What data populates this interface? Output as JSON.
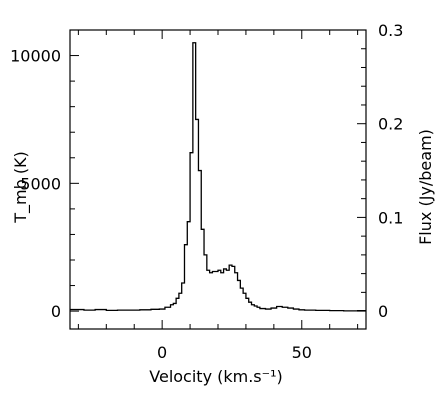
{
  "chart_data": {
    "type": "line",
    "style": "step",
    "xlabel": "Velocity (km.s⁻¹)",
    "ylabel_left": "T_mb (K)",
    "ylabel_right": "Flux (Jy/beam)",
    "xlim": [
      -33,
      73
    ],
    "ylim_left": [
      -700,
      11000
    ],
    "ylim_right": [
      -0.0191,
      0.3
    ],
    "x_ticks": [
      0,
      50
    ],
    "x_tick_labels": [
      "0",
      "50"
    ],
    "y_left_ticks": [
      0,
      5000,
      10000
    ],
    "y_left_tick_labels": [
      "0",
      "5000",
      "10000"
    ],
    "y_right_ticks": [
      0,
      0.1,
      0.2,
      0.3
    ],
    "y_right_tick_labels": [
      "0",
      "0.1",
      "0.2",
      "0.3"
    ],
    "grid": false,
    "colors": {
      "line": "#000000",
      "axes": "#000000",
      "background": "#ffffff"
    },
    "series": [
      {
        "x": [
          -33,
          -28,
          -24,
          -20,
          -16,
          -12,
          -8,
          -4,
          -1,
          1,
          3,
          4,
          5,
          6,
          7,
          8,
          9,
          10,
          11,
          12,
          13,
          14,
          15,
          16,
          17,
          18,
          19,
          20,
          21,
          22,
          23,
          24,
          25,
          26,
          27,
          28,
          29,
          30,
          31,
          32,
          33,
          34,
          35,
          37,
          39,
          41,
          43,
          45,
          47,
          49,
          51,
          55,
          60,
          65,
          70,
          73
        ],
        "values": [
          60,
          40,
          60,
          30,
          40,
          40,
          50,
          70,
          80,
          150,
          250,
          300,
          500,
          700,
          1100,
          2600,
          3500,
          6200,
          10500,
          7500,
          5500,
          3200,
          2200,
          1600,
          1500,
          1550,
          1550,
          1600,
          1500,
          1650,
          1600,
          1800,
          1750,
          1500,
          1200,
          900,
          700,
          500,
          350,
          250,
          200,
          150,
          100,
          80,
          120,
          180,
          150,
          120,
          80,
          50,
          40,
          30,
          20,
          10,
          20,
          20
        ]
      }
    ]
  }
}
